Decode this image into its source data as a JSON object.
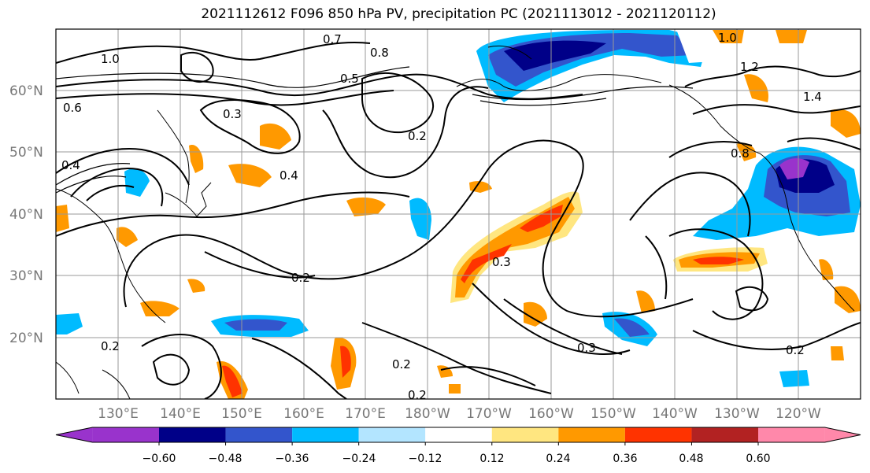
{
  "title": "2021112612 F096 850 hPa PV, precipitation PC (2021113012 - 2021120112)",
  "map": {
    "lat_labels": [
      "60°N",
      "50°N",
      "40°N",
      "30°N",
      "20°N"
    ],
    "lon_labels": [
      "130°E",
      "140°E",
      "150°E",
      "160°E",
      "170°E",
      "180°W",
      "170°W",
      "160°W",
      "150°W",
      "140°W",
      "130°W",
      "120°W"
    ],
    "contour_labels": [
      "1.0",
      "0.8",
      "0.7",
      "0.6",
      "0.5",
      "0.4",
      "0.3",
      "0.2",
      "0.2",
      "0.3",
      "0.4",
      "0.2",
      "0.2",
      "0.3",
      "0.2",
      "1.0",
      "1.2",
      "1.4",
      "0.8",
      "0.2"
    ]
  },
  "colorbar": {
    "tick_labels": [
      "−0.60",
      "−0.48",
      "−0.36",
      "−0.24",
      "−0.12",
      "0.12",
      "0.24",
      "0.36",
      "0.48",
      "0.60"
    ],
    "colors": [
      "#9933cc",
      "#000088",
      "#3355cc",
      "#00bbff",
      "#b3e5ff",
      "#ffffff",
      "#ffe680",
      "#ff9900",
      "#ff3300",
      "#b22222",
      "#ff88aa"
    ]
  }
}
